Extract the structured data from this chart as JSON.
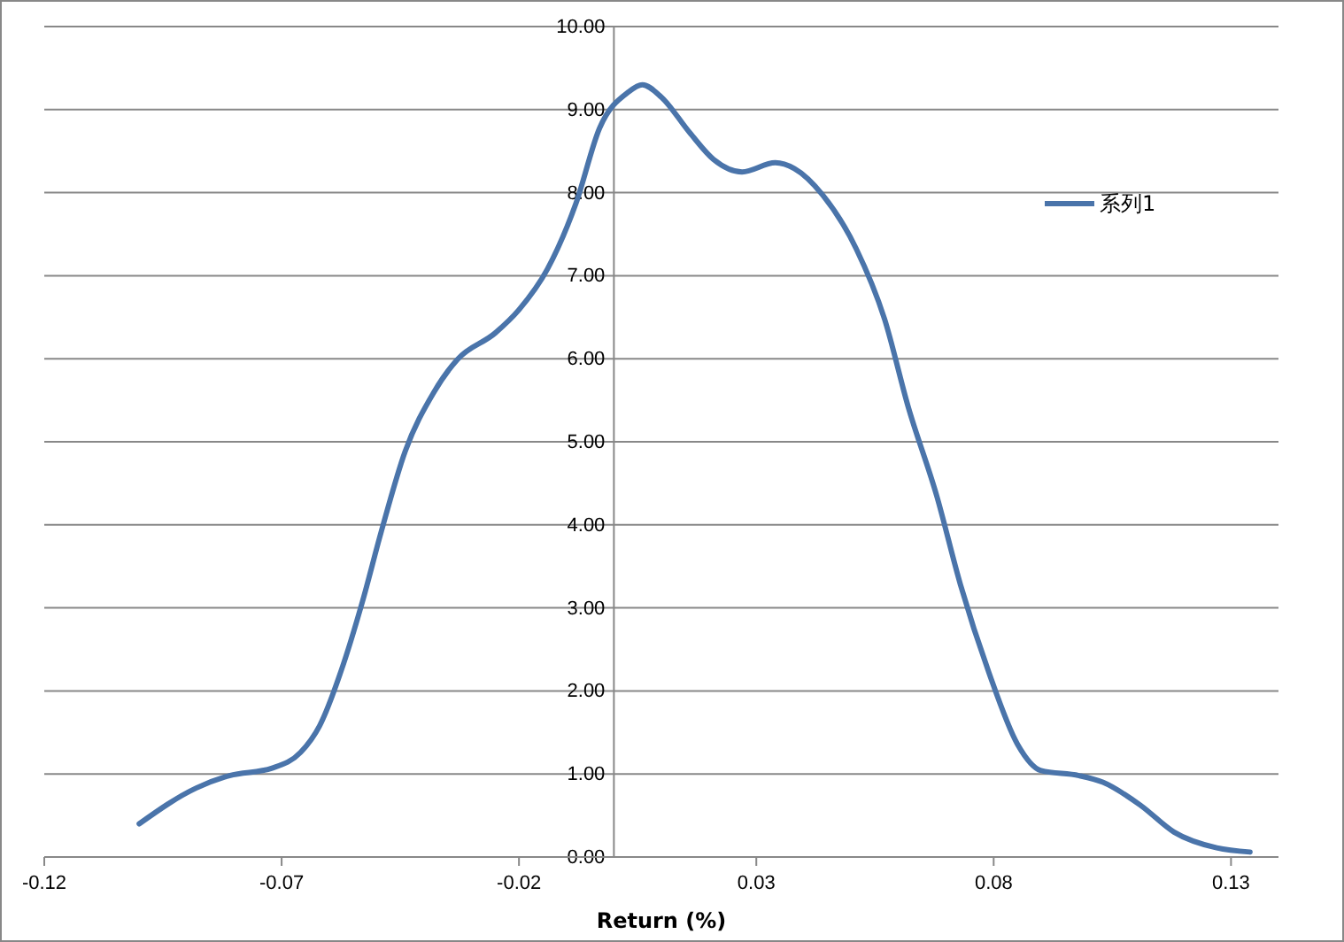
{
  "chart_data": {
    "type": "line",
    "xlabel": "Return (%)",
    "xlim": [
      -0.12,
      0.14
    ],
    "xticks": [
      -0.12,
      -0.07,
      -0.02,
      0.03,
      0.08,
      0.13
    ],
    "ylim": [
      0,
      10
    ],
    "yticks": [
      {
        "value": 0,
        "label": "0.00"
      },
      {
        "value": 1,
        "label": "1.00"
      },
      {
        "value": 2,
        "label": "2.00"
      },
      {
        "value": 3,
        "label": "3.00"
      },
      {
        "value": 4,
        "label": "4.00"
      },
      {
        "value": 5,
        "label": "5.00"
      },
      {
        "value": 6,
        "label": "6.00"
      },
      {
        "value": 7,
        "label": "7.00"
      },
      {
        "value": 8,
        "label": "8.00"
      },
      {
        "value": 9,
        "label": "9.00"
      },
      {
        "value": 10,
        "label": "10.00"
      }
    ],
    "grid": "y",
    "legend": "top right",
    "marker": "none",
    "line_style": "solid",
    "series": [
      {
        "name": "系列1",
        "color": "#4a74aa",
        "x": [
          -0.1,
          -0.088,
          -0.081,
          -0.072,
          -0.066,
          -0.062,
          -0.057,
          -0.053,
          -0.049,
          -0.044,
          -0.038,
          -0.033,
          -0.025,
          -0.02,
          -0.014,
          -0.008,
          -0.003,
          0.003,
          0.006,
          0.01,
          0.016,
          0.021,
          0.027,
          0.034,
          0.038,
          0.044,
          0.051,
          0.057,
          0.062,
          0.068,
          0.073,
          0.079,
          0.085,
          0.09,
          0.098,
          0.103,
          0.111,
          0.118,
          0.127,
          0.134
        ],
        "values": [
          0.4,
          0.83,
          0.98,
          1.07,
          1.26,
          1.58,
          2.32,
          3.07,
          3.92,
          4.88,
          5.59,
          5.99,
          6.31,
          6.59,
          7.08,
          7.87,
          8.78,
          9.21,
          9.3,
          9.15,
          8.72,
          8.4,
          8.25,
          8.36,
          8.29,
          7.97,
          7.33,
          6.48,
          5.42,
          4.35,
          3.28,
          2.22,
          1.36,
          1.04,
          0.98,
          0.9,
          0.62,
          0.3,
          0.11,
          0.06
        ]
      }
    ]
  }
}
